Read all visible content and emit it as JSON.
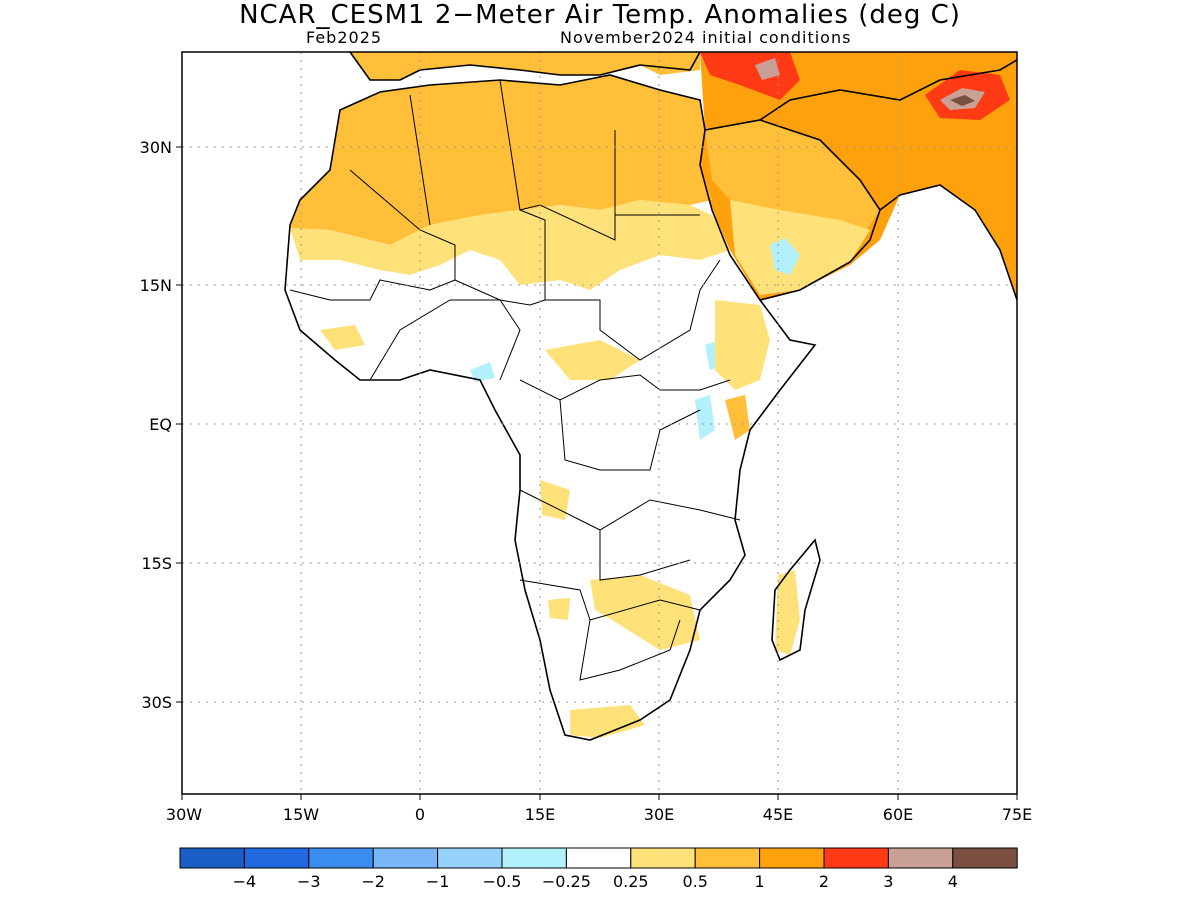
{
  "title": "NCAR_CESM1 2−Meter Air Temp. Anomalies (deg C)",
  "subtitle_left": "Feb2025",
  "subtitle_right": "November2024 initial conditions",
  "map": {
    "lon_range": [
      -30,
      75
    ],
    "lat_range": [
      -38,
      39
    ],
    "lat_ticks": [
      "30N",
      "15N",
      "EQ",
      "15S",
      "30S"
    ],
    "lon_ticks": [
      "30W",
      "15W",
      "0",
      "15E",
      "30E",
      "45E",
      "60E",
      "75E"
    ],
    "grid": "dotted"
  },
  "colorbar": {
    "colors": [
      "#1a5fc8",
      "#2069e0",
      "#3b8ef0",
      "#78b6f8",
      "#96d1fa",
      "#b2f0fc",
      "#ffffff",
      "#ffe17a",
      "#ffbf38",
      "#ffa00d",
      "#ff3a14",
      "#c8a096",
      "#7a4f3f"
    ],
    "labels": [
      "−4",
      "−3",
      "−2",
      "−1",
      "−0.5",
      "−0.25",
      "0.25",
      "0.5",
      "1",
      "2",
      "3",
      "4"
    ]
  }
}
